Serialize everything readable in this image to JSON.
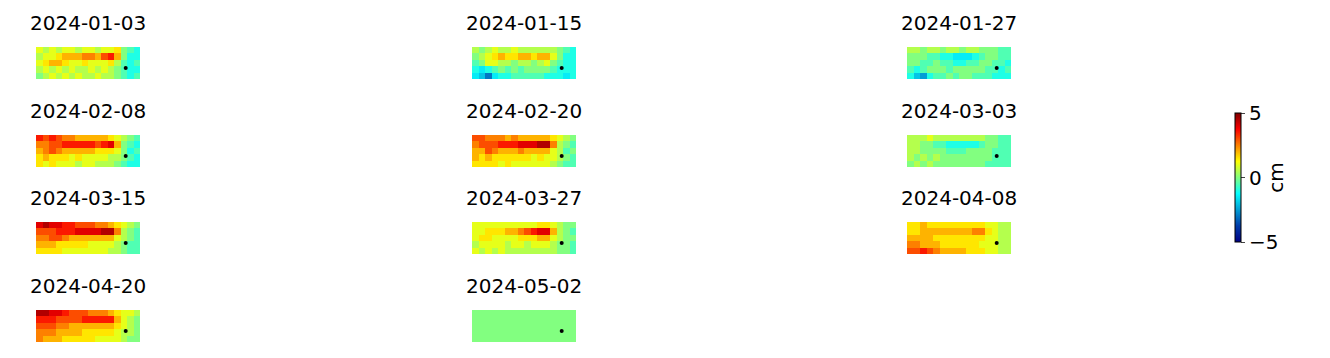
{
  "chart_data": {
    "type": "heatmap",
    "tick_labels": false,
    "color": "Jet",
    "colorbar": {
      "label": "cm",
      "range": [
        -5,
        5
      ],
      "ticks": [
        -5,
        0,
        5
      ]
    },
    "reference_point": {
      "x": 13.3,
      "y": 2.8
    },
    "panels": [
      {
        "title": "2024-01-03",
        "z": [
          [
            1,
            0.5,
            1,
            0.5,
            1,
            1,
            0.5,
            1,
            1,
            0.5,
            1,
            1,
            1.5,
            0,
            -0.5,
            -1
          ],
          [
            0.5,
            1,
            1,
            1.5,
            2,
            2,
            2,
            2.5,
            2.5,
            2,
            3,
            3.5,
            2,
            0,
            -1,
            -1
          ],
          [
            1,
            1.5,
            2,
            2,
            1.5,
            1,
            1,
            1.5,
            1,
            1,
            1,
            1.5,
            0.5,
            -0.5,
            -1,
            -0.5
          ],
          [
            0.5,
            1,
            0.5,
            1,
            0.5,
            1,
            0.5,
            0.5,
            1,
            0.5,
            1,
            0.5,
            0,
            -0.5,
            -1,
            -1
          ],
          [
            0,
            0.5,
            1,
            0.5,
            1,
            0.5,
            1,
            0.5,
            0.5,
            1,
            0.5,
            0.5,
            0,
            -0.5,
            -1,
            -0.5
          ]
        ]
      },
      {
        "title": "2024-01-15",
        "z": [
          [
            0.5,
            0,
            0.5,
            1,
            0.5,
            0.5,
            1,
            0.5,
            0.5,
            0.5,
            0.5,
            0.5,
            0.5,
            0,
            -0.5,
            -1
          ],
          [
            0,
            0.5,
            1,
            1.5,
            2,
            1.5,
            1.5,
            2,
            2,
            1.5,
            2,
            2,
            1,
            0,
            -1,
            -1
          ],
          [
            -0.5,
            0,
            1,
            1,
            0.5,
            0.5,
            0,
            0.5,
            0.5,
            0,
            0.5,
            1,
            0,
            -0.5,
            -1,
            -1
          ],
          [
            -1,
            -1.5,
            -1,
            -0.5,
            0,
            -0.5,
            0,
            -0.5,
            0,
            0,
            0,
            0,
            -0.5,
            -1,
            -1,
            -1
          ],
          [
            -1.5,
            -2,
            -3,
            -1.5,
            -1,
            -1,
            -0.5,
            -0.5,
            -0.5,
            -0.5,
            -0.5,
            -1,
            -1,
            -1,
            -1.5,
            -1
          ]
        ]
      },
      {
        "title": "2024-01-27",
        "z": [
          [
            0.5,
            0.5,
            0,
            0.5,
            0.5,
            0,
            0.5,
            0.5,
            0,
            0.5,
            0.5,
            0,
            0,
            0,
            -0.5,
            -0.5
          ],
          [
            0,
            0,
            0,
            -0.5,
            -0.5,
            -1,
            -1,
            -1.5,
            -1.5,
            -1.5,
            -1,
            -0.5,
            0,
            0,
            -0.5,
            -0.5
          ],
          [
            0,
            0,
            -0.5,
            -0.5,
            0,
            -0.5,
            -0.5,
            -1,
            -1,
            -0.5,
            -0.5,
            0,
            0,
            -0.5,
            -0.5,
            -1
          ],
          [
            -0.5,
            -1,
            -0.5,
            0,
            0,
            0,
            -0.5,
            0,
            0,
            0,
            0,
            0,
            -0.5,
            -0.5,
            -1,
            -0.5
          ],
          [
            -1,
            -2,
            -2.5,
            -1,
            -0.5,
            -0.5,
            0,
            -0.5,
            0,
            0,
            -0.5,
            -0.5,
            -0.5,
            -1,
            -1,
            -1
          ]
        ]
      },
      {
        "title": "2024-02-08",
        "z": [
          [
            3.5,
            3,
            3.5,
            3,
            2.5,
            2.5,
            2,
            2,
            2,
            2,
            2,
            1.5,
            1,
            0.5,
            0,
            -0.5
          ],
          [
            2.5,
            2.5,
            3,
            3,
            3.5,
            3.5,
            3.5,
            3.5,
            3.5,
            3,
            3.5,
            4,
            2,
            0,
            -0.5,
            -1
          ],
          [
            2,
            2.5,
            3,
            2.5,
            2,
            2,
            2,
            2,
            2,
            1.5,
            1.5,
            1.5,
            1,
            0,
            -1,
            -0.5
          ],
          [
            1.5,
            2,
            1.5,
            1.5,
            1.5,
            1,
            1.5,
            1,
            1,
            1,
            1,
            0.5,
            0.5,
            0,
            -0.5,
            -1
          ],
          [
            1.5,
            1,
            1.5,
            1,
            1,
            1,
            0.5,
            1,
            1,
            0.5,
            0.5,
            0.5,
            0,
            -0.5,
            -1,
            -1
          ]
        ]
      },
      {
        "title": "2024-02-20",
        "z": [
          [
            3,
            3,
            2.5,
            2.5,
            2.5,
            2,
            2.5,
            2,
            2,
            2,
            2,
            2,
            1.5,
            1,
            0.5,
            0
          ],
          [
            2.5,
            3,
            3,
            3,
            3.5,
            3.5,
            3.5,
            4,
            4,
            4,
            4.5,
            4.5,
            2.5,
            0.5,
            0,
            -0.5
          ],
          [
            2,
            2,
            3,
            2.5,
            2,
            2,
            2,
            2.5,
            2,
            2,
            2,
            2,
            1,
            0.5,
            -0.5,
            0
          ],
          [
            2,
            1.5,
            2,
            1.5,
            1.5,
            1.5,
            1.5,
            1.5,
            1.5,
            1,
            1.5,
            1,
            1,
            0.5,
            0,
            -0.5
          ],
          [
            1.5,
            1.5,
            1.5,
            1.5,
            1,
            1.5,
            1,
            1,
            1,
            1,
            1,
            1,
            0.5,
            0,
            -0.5,
            -0.5
          ]
        ]
      },
      {
        "title": "2024-03-03",
        "z": [
          [
            0.5,
            0.5,
            0.5,
            1,
            0.5,
            0.5,
            0.5,
            0.5,
            0.5,
            0.5,
            0.5,
            0.5,
            0,
            0,
            -0.5,
            -0.5
          ],
          [
            0.5,
            0.5,
            0,
            0,
            -0.5,
            -0.5,
            -1,
            -1,
            -1,
            -1,
            -1,
            -0.5,
            0,
            0,
            -0.5,
            -0.5
          ],
          [
            0.5,
            0.5,
            0,
            0,
            0,
            0,
            -0.5,
            -0.5,
            -0.5,
            0,
            0,
            0,
            0,
            -0.5,
            -0.5,
            -0.5
          ],
          [
            0.5,
            0,
            0.5,
            0,
            0.5,
            0,
            0,
            0,
            0,
            0,
            0,
            0,
            0,
            -0.5,
            -0.5,
            -0.5
          ],
          [
            0,
            0.5,
            0,
            0.5,
            0,
            0,
            0,
            0,
            0,
            0,
            0,
            0,
            -0.5,
            -0.5,
            -0.5,
            -0.5
          ]
        ]
      },
      {
        "title": "2024-03-15",
        "z": [
          [
            4,
            4.5,
            4,
            4,
            3.5,
            3.5,
            3,
            3,
            3,
            2.5,
            2.5,
            2,
            1.5,
            1,
            0.5,
            0
          ],
          [
            3,
            3,
            3,
            3.5,
            3.5,
            3.5,
            4,
            4,
            4,
            4,
            4.5,
            4.5,
            2.5,
            0.5,
            0,
            -0.5
          ],
          [
            2.5,
            2.5,
            3,
            3,
            2.5,
            2,
            2,
            2,
            2,
            2,
            2,
            2,
            1,
            0.5,
            0,
            -0.5
          ],
          [
            2,
            2,
            2,
            1.5,
            1.5,
            1.5,
            1.5,
            1.5,
            1,
            1,
            1,
            1,
            0.5,
            0,
            -0.5,
            -0.5
          ],
          [
            1.5,
            1.5,
            1.5,
            1.5,
            1,
            1,
            1,
            1,
            1,
            1,
            1,
            0.5,
            0.5,
            0,
            -0.5,
            -0.5
          ]
        ]
      },
      {
        "title": "2024-03-27",
        "z": [
          [
            1,
            1,
            1,
            1,
            1,
            1,
            1,
            1,
            1,
            1,
            1.5,
            1.5,
            1,
            0.5,
            0,
            0
          ],
          [
            1,
            1,
            1.5,
            1.5,
            1.5,
            2,
            2,
            2.5,
            3,
            3.5,
            4,
            4,
            2,
            0.5,
            0,
            -0.5
          ],
          [
            1,
            1.5,
            1.5,
            1,
            1,
            1,
            1,
            1.5,
            1.5,
            1.5,
            2,
            2,
            1,
            0.5,
            0,
            0
          ],
          [
            0.5,
            1,
            1,
            1,
            1,
            0.5,
            1,
            1,
            0.5,
            1,
            1,
            1,
            0.5,
            0,
            0,
            -0.5
          ],
          [
            1,
            0.5,
            1,
            0.5,
            1,
            0.5,
            0.5,
            0.5,
            0.5,
            0.5,
            0.5,
            0.5,
            0.5,
            0,
            0,
            -0.5
          ]
        ]
      },
      {
        "title": "2024-04-08",
        "z": [
          [
            1.5,
            1.5,
            2,
            1.5,
            1.5,
            1.5,
            1.5,
            1.5,
            1.5,
            1.5,
            1.5,
            1.5,
            1,
            1,
            0.5,
            0.5
          ],
          [
            1.5,
            1.5,
            2,
            2,
            2,
            2,
            2,
            2,
            2,
            2,
            2.5,
            2.5,
            1.5,
            1,
            0.5,
            0.5
          ],
          [
            2,
            2,
            2,
            2,
            1.5,
            1.5,
            1.5,
            1.5,
            1.5,
            1.5,
            1.5,
            1.5,
            1,
            1,
            0.5,
            0.5
          ],
          [
            2.5,
            2.5,
            2,
            2,
            2,
            1.5,
            1.5,
            1.5,
            1.5,
            1.5,
            1.5,
            1,
            1,
            1,
            0.5,
            0.5
          ],
          [
            3,
            3,
            3.5,
            3,
            2.5,
            2,
            2,
            2,
            2,
            1.5,
            1.5,
            1.5,
            1,
            1,
            0.5,
            0.5
          ]
        ]
      },
      {
        "title": "2024-04-20",
        "z": [
          [
            4.5,
            4.5,
            4,
            4,
            3.5,
            3,
            3,
            3,
            2.5,
            2.5,
            2.5,
            2,
            1.5,
            1,
            1,
            0.5
          ],
          [
            3.5,
            3.5,
            3.5,
            3,
            3,
            3,
            3,
            3.5,
            3.5,
            3.5,
            3.5,
            3.5,
            2,
            1,
            0.5,
            0
          ],
          [
            3,
            3,
            3,
            2.5,
            2.5,
            2,
            2,
            2,
            2,
            2,
            2,
            2,
            1.5,
            1,
            0.5,
            0
          ],
          [
            2.5,
            2.5,
            2.5,
            2,
            2,
            2,
            2,
            1.5,
            1.5,
            1.5,
            1.5,
            1.5,
            1,
            0.5,
            0.5,
            0
          ],
          [
            2.5,
            2,
            2,
            2,
            1.5,
            1.5,
            1.5,
            1.5,
            1.5,
            1,
            1,
            1,
            1,
            0.5,
            0,
            0
          ]
        ]
      },
      {
        "title": "2024-05-02",
        "z": [
          [
            0,
            0,
            0,
            0,
            0,
            0,
            0,
            0,
            0,
            0,
            0,
            0,
            0,
            0,
            0,
            0
          ],
          [
            0,
            0,
            0,
            0,
            0,
            0,
            0,
            0,
            0,
            0,
            0,
            0,
            0,
            0,
            0,
            0
          ],
          [
            0,
            0,
            0,
            0,
            0,
            0,
            0,
            0,
            0,
            0,
            0,
            0,
            0,
            0,
            0,
            0
          ],
          [
            0,
            0,
            0,
            0,
            0,
            0,
            0,
            0,
            0,
            0,
            0,
            0,
            0,
            0,
            0,
            0
          ],
          [
            0,
            0,
            0,
            0,
            0,
            0,
            0,
            0,
            0,
            0,
            0,
            0,
            0,
            0,
            0,
            0
          ]
        ]
      }
    ]
  }
}
